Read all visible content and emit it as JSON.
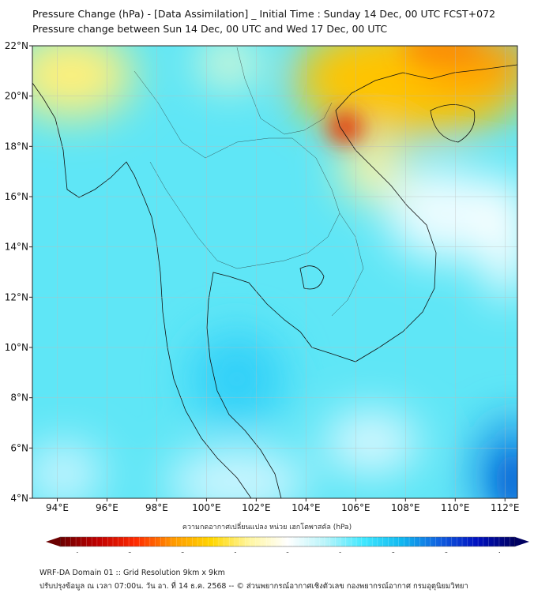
{
  "header": {
    "title": "Pressure Change (hPa) - [Data Assimilation] _ Initial Time : Sunday 14 Dec, 00 UTC FCST+072",
    "subtitle": "Pressure change between Sun 14 Dec, 00 UTC and Wed 17 Dec, 00 UTC"
  },
  "map": {
    "lon_range": [
      93,
      112.5
    ],
    "lat_range": [
      4,
      22
    ],
    "lon_ticks": [
      "94°E",
      "96°E",
      "98°E",
      "100°E",
      "102°E",
      "104°E",
      "106°E",
      "108°E",
      "110°E",
      "112°E"
    ],
    "lon_values": [
      94,
      96,
      98,
      100,
      102,
      104,
      106,
      108,
      110,
      112
    ],
    "lat_ticks": [
      "22°N",
      "20°N",
      "18°N",
      "16°N",
      "14°N",
      "12°N",
      "10°N",
      "8°N",
      "6°N",
      "4°N"
    ],
    "lat_values": [
      22,
      20,
      18,
      16,
      14,
      12,
      10,
      8,
      6,
      4
    ]
  },
  "colorbar": {
    "label": "ความกดอากาศเปลี่ยนแปลง หน่วย เฮกโตพาสคัล (hPa)",
    "ticks": [
      "-4",
      "-3",
      "-2",
      "-1",
      "0",
      "1",
      "2",
      "3",
      "4"
    ],
    "tick_values": [
      -4,
      -3,
      -2,
      -1,
      0,
      1,
      2,
      3,
      4
    ],
    "range": [
      -4.3,
      4.3
    ],
    "colors": [
      "#6b0000",
      "#c00000",
      "#ff2a00",
      "#ff9a00",
      "#ffd700",
      "#fff6a0",
      "#ffffff",
      "#b8f4fa",
      "#40e8ff",
      "#10b8f0",
      "#1060e0",
      "#0010c0",
      "#000060"
    ]
  },
  "footer": {
    "line1": "WRF-DA Domain 01 :: Grid Resolution 9km x 9km",
    "line2": "ปรับปรุงข้อมูล ณ เวลา 07:00น. วัน อา. ที่ 14 ธ.ค. 2568 -- © ส่วนพยากรณ์อากาศเชิงตัวเลข กองพยากรณ์อากาศ กรมอุตุนิยมวิทยา"
  }
}
